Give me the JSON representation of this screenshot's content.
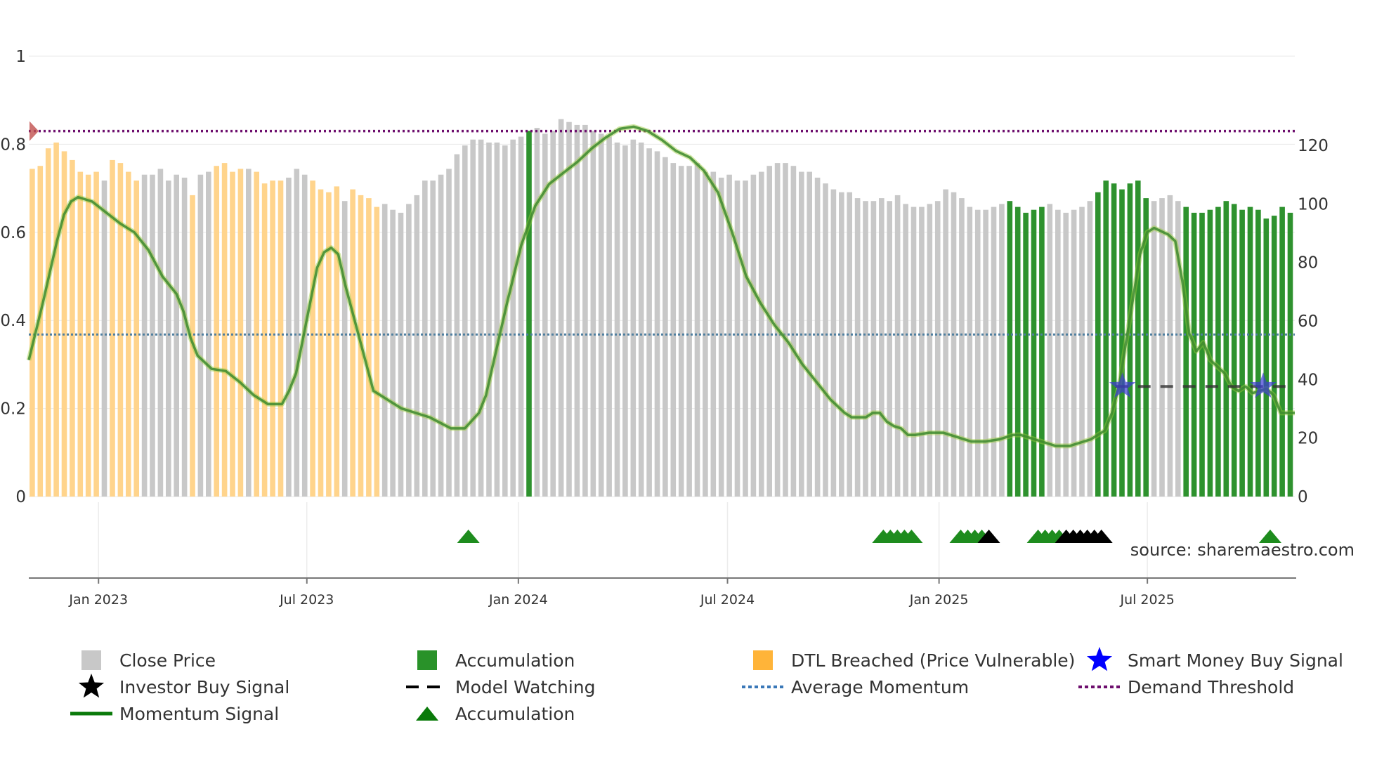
{
  "chart_data": {
    "type": "bar+line",
    "source_label": "source: sharemaestro.com",
    "colors": {
      "close": "#c8c8c8",
      "accumulation": "#2e922e",
      "dtl": "#ffd48c",
      "momentum": "#3d8a2e",
      "momentum_glow": "#9ccc3a",
      "average": "#4f7fa0",
      "demand": "#6e0f6e",
      "accum_marker": "#1e8c1e",
      "investor": "#000000",
      "smart_money": "#3c3cd2",
      "watching": "#333333",
      "breach_marker": "#c0504d"
    },
    "left_axis": {
      "ylim": [
        0,
        1
      ],
      "ticks": [
        "0",
        "0.2",
        "0.4",
        "0.6",
        "0.8",
        "1"
      ],
      "tick_values": [
        0,
        0.2,
        0.4,
        0.6,
        0.8,
        1
      ]
    },
    "right_axis": {
      "ylim": [
        0,
        150.5
      ],
      "ticks": [
        "0",
        "20",
        "40",
        "60",
        "80",
        "100",
        "120"
      ],
      "tick_values": [
        0,
        20,
        40,
        60,
        80,
        100,
        120
      ]
    },
    "x_labels": [
      "Jan 2023",
      "Jul 2023",
      "Jan 2024",
      "Jul 2024",
      "Jan 2025",
      "Jul 2025"
    ],
    "x_label_index": [
      8.7,
      34.7,
      61.1,
      87.2,
      113.6,
      139.6
    ],
    "n_bars": 158,
    "bar_types": "DDDDDDDDDCDDDDCCCCCCDCCDDDDCDDDDCCCDDDDCDDDDCCCCCCCCCCCCCCCCCCCCCCCCCCCCCCCCCCCCCCCCCCCCCCCCCCCCCCCCCCCCCCCCCCCCCCCCCCCCCCCCCCCCCCCCCCCCCCCCCCCCCCCCCCCCCCCCCCCCCC",
    "bars": [
      112,
      113,
      119,
      121,
      118,
      115,
      111,
      110,
      111,
      108,
      115,
      114,
      111,
      108,
      110,
      110,
      112,
      108,
      110,
      109,
      103,
      110,
      111,
      113,
      114,
      111,
      112,
      112,
      111,
      107,
      108,
      108,
      109,
      112,
      110,
      108,
      105,
      104,
      106,
      101,
      105,
      103,
      102,
      99,
      100,
      98,
      97,
      100,
      103,
      108,
      108,
      110,
      112,
      117,
      120,
      122,
      122,
      121,
      121,
      120,
      122,
      123,
      125,
      126,
      124,
      125,
      129,
      128,
      127,
      127,
      125,
      124,
      123,
      121,
      120,
      122,
      121,
      119,
      118,
      116,
      114,
      113,
      113,
      114,
      111,
      111,
      109,
      110,
      108,
      108,
      110,
      111,
      113,
      114,
      114,
      113,
      111,
      111,
      109,
      107,
      105,
      104,
      104,
      102,
      101,
      101,
      102,
      101,
      103,
      100,
      99,
      99,
      100,
      101,
      105,
      104,
      102,
      99,
      98,
      98,
      99,
      100,
      101,
      99,
      97,
      98,
      99,
      100,
      98,
      97,
      98,
      99,
      101,
      104,
      108,
      107,
      105,
      107,
      108,
      102,
      101,
      102,
      103,
      101,
      99,
      97,
      97,
      98,
      99,
      101,
      100,
      98,
      99,
      98,
      95,
      96,
      99,
      97
    ],
    "accumulation_index": [
      62,
      122,
      123,
      124,
      125,
      126,
      133,
      134,
      135,
      136,
      137,
      138,
      139,
      144,
      145,
      146,
      147,
      148,
      149,
      150,
      151,
      152,
      153,
      154,
      155,
      156,
      157
    ],
    "momentum": [
      [
        0,
        0.31
      ],
      [
        2,
        0.44
      ],
      [
        4,
        0.58
      ],
      [
        5,
        0.64
      ],
      [
        6,
        0.67
      ],
      [
        7,
        0.68
      ],
      [
        9,
        0.67
      ],
      [
        11,
        0.645
      ],
      [
        13,
        0.62
      ],
      [
        15,
        0.6
      ],
      [
        17,
        0.56
      ],
      [
        19,
        0.5
      ],
      [
        21,
        0.46
      ],
      [
        22,
        0.42
      ],
      [
        23,
        0.36
      ],
      [
        24,
        0.32
      ],
      [
        26,
        0.29
      ],
      [
        28,
        0.285
      ],
      [
        30,
        0.26
      ],
      [
        32,
        0.23
      ],
      [
        34,
        0.21
      ],
      [
        36,
        0.21
      ],
      [
        37,
        0.24
      ],
      [
        38,
        0.28
      ],
      [
        40,
        0.44
      ],
      [
        41,
        0.52
      ],
      [
        42,
        0.555
      ],
      [
        43,
        0.565
      ],
      [
        44,
        0.55
      ],
      [
        45,
        0.48
      ],
      [
        46,
        0.42
      ],
      [
        47,
        0.36
      ],
      [
        48,
        0.3
      ],
      [
        49,
        0.24
      ],
      [
        50,
        0.23
      ],
      [
        51,
        0.22
      ],
      [
        53,
        0.2
      ],
      [
        55,
        0.19
      ],
      [
        57,
        0.18
      ],
      [
        60,
        0.155
      ],
      [
        62,
        0.155
      ],
      [
        64,
        0.19
      ],
      [
        65,
        0.23
      ],
      [
        66,
        0.3
      ],
      [
        68,
        0.44
      ],
      [
        70,
        0.57
      ],
      [
        72,
        0.66
      ],
      [
        74,
        0.71
      ],
      [
        76,
        0.735
      ],
      [
        78,
        0.76
      ],
      [
        80,
        0.79
      ],
      [
        82,
        0.815
      ],
      [
        84,
        0.835
      ],
      [
        86,
        0.84
      ],
      [
        88,
        0.83
      ],
      [
        90,
        0.81
      ],
      [
        92,
        0.785
      ],
      [
        94,
        0.77
      ],
      [
        96,
        0.74
      ],
      [
        98,
        0.69
      ],
      [
        100,
        0.6
      ],
      [
        102,
        0.5
      ],
      [
        104,
        0.44
      ],
      [
        106,
        0.39
      ],
      [
        108,
        0.35
      ],
      [
        110,
        0.3
      ],
      [
        112,
        0.26
      ],
      [
        114,
        0.22
      ],
      [
        116,
        0.19
      ],
      [
        117,
        0.18
      ],
      [
        119,
        0.18
      ],
      [
        120,
        0.19
      ],
      [
        121,
        0.19
      ],
      [
        122,
        0.17
      ],
      [
        123,
        0.16
      ],
      [
        124,
        0.155
      ],
      [
        125,
        0.14
      ],
      [
        126,
        0.14
      ],
      [
        128,
        0.145
      ],
      [
        130,
        0.145
      ],
      [
        132,
        0.135
      ],
      [
        134,
        0.125
      ],
      [
        136,
        0.125
      ],
      [
        138,
        0.13
      ],
      [
        140,
        0.14
      ],
      [
        141,
        0.14
      ],
      [
        143,
        0.13
      ],
      [
        145,
        0.12
      ],
      [
        146,
        0.115
      ],
      [
        148,
        0.115
      ],
      [
        150,
        0.125
      ],
      [
        151,
        0.13
      ],
      [
        153,
        0.15
      ],
      [
        154,
        0.19
      ],
      [
        155,
        0.25
      ],
      [
        156,
        0.35
      ],
      [
        157,
        0.45
      ],
      [
        158,
        0.55
      ],
      [
        159,
        0.6
      ],
      [
        160,
        0.61
      ],
      [
        162,
        0.595
      ],
      [
        163,
        0.58
      ],
      [
        164,
        0.49
      ],
      [
        165,
        0.37
      ],
      [
        166,
        0.33
      ],
      [
        167,
        0.35
      ],
      [
        168,
        0.31
      ],
      [
        169,
        0.295
      ],
      [
        170,
        0.28
      ],
      [
        171,
        0.25
      ],
      [
        172,
        0.24
      ],
      [
        173,
        0.25
      ],
      [
        174,
        0.235
      ],
      [
        175,
        0.24
      ],
      [
        176,
        0.245
      ],
      [
        177,
        0.23
      ],
      [
        178,
        0.19
      ],
      [
        180,
        0.19
      ]
    ],
    "average_momentum": 0.368,
    "demand_threshold": 0.83,
    "model_watching": {
      "from": 154.5,
      "to": 179.5,
      "value": 0.25
    },
    "smart_money_signals": [
      [
        155.5,
        0.25
      ],
      [
        175.5,
        0.25
      ]
    ],
    "breach_marker": [
      0.4,
      0.83
    ],
    "accumulation_markers": [
      62.5,
      121.5,
      122.5,
      123.5,
      124.5,
      125.5,
      132.5,
      133.5,
      134.5,
      135.5,
      143.5,
      144.5,
      145.5,
      146.5,
      176.5
    ],
    "investor_markers": [
      136.5,
      147.5,
      148.5,
      149.5,
      150.5,
      151.5,
      152.5
    ],
    "legend": [
      {
        "label": "Close Price",
        "symbol": "square-grey"
      },
      {
        "label": "Accumulation",
        "symbol": "square-green"
      },
      {
        "label": "DTL Breached (Price Vulnerable)",
        "symbol": "square-orange"
      },
      {
        "label": "Smart Money Buy Signal",
        "symbol": "star-blue"
      },
      {
        "label": "Investor Buy Signal",
        "symbol": "star-black"
      },
      {
        "label": "Model Watching",
        "symbol": "dash-black"
      },
      {
        "label": "Average Momentum",
        "symbol": "dot-blue"
      },
      {
        "label": "Demand Threshold",
        "symbol": "dot-purple"
      },
      {
        "label": "Momentum Signal",
        "symbol": "line-green"
      },
      {
        "label": "Accumulation",
        "symbol": "triangle-green"
      }
    ]
  }
}
